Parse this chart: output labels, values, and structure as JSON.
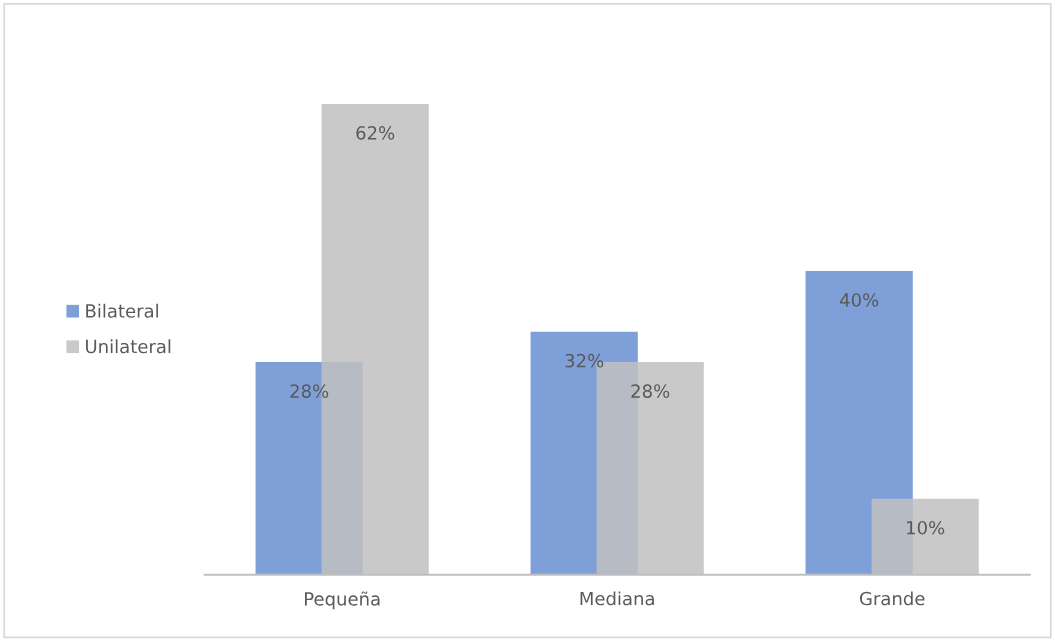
{
  "chart_data": {
    "type": "bar",
    "categories": [
      "Pequeña",
      "Mediana",
      "Grande"
    ],
    "series": [
      {
        "name": "Bilateral",
        "color": "#7f9fd9",
        "values": [
          28,
          32,
          40
        ],
        "value_labels": [
          "28%",
          "32%",
          "40%"
        ]
      },
      {
        "name": "Unilateral",
        "color": "#bfbfbf",
        "values": [
          62,
          28,
          10
        ],
        "value_labels": [
          "62%",
          "28%",
          "10%"
        ]
      }
    ],
    "legend": "left"
  }
}
